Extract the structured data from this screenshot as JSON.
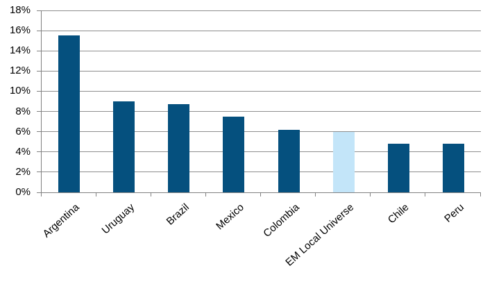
{
  "chart_data": {
    "type": "bar",
    "title": "",
    "xlabel": "",
    "ylabel": "",
    "categories": [
      "Argentina",
      "Uruguay",
      "Brazil",
      "Mexico",
      "Colombia",
      "EM Local Universe",
      "Chile",
      "Peru"
    ],
    "values": [
      15.5,
      9.0,
      8.7,
      7.5,
      6.2,
      6.0,
      4.8,
      4.8
    ],
    "highlight_index": 5,
    "ylim": [
      0,
      18
    ],
    "ytick_step": 2,
    "ytick_labels": [
      "0%",
      "2%",
      "4%",
      "6%",
      "8%",
      "10%",
      "12%",
      "14%",
      "16%",
      "18%"
    ],
    "grid": true,
    "legend": false,
    "x_label_rotation_deg": -42,
    "colors": {
      "bar": "#05507e",
      "highlight_bar": "#c3e5f9",
      "gridline": "#8e8e8e",
      "axis": "#808080",
      "text": "#000000",
      "background": "#ffffff"
    }
  }
}
